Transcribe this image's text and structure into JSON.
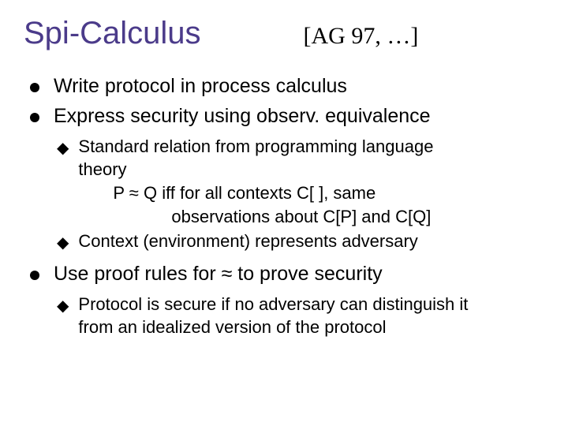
{
  "title": "Spi-Calculus",
  "citation": "[AG 97, …]",
  "bullets": [
    {
      "text": "Write protocol in process calculus"
    },
    {
      "text": "Express security using observ. equivalence"
    }
  ],
  "sub1": [
    {
      "line1": "Standard relation from programming language",
      "line2": "theory",
      "line3": "P ≈ Q iff  for all contexts C[ ], same",
      "line4": "observations about C[P] and C[Q]"
    },
    {
      "line1": "Context (environment) represents adversary"
    }
  ],
  "bullet3": {
    "text": "Use proof rules for ≈ to prove security"
  },
  "sub2": [
    {
      "line1": "Protocol is secure if no adversary can distinguish it",
      "line2": "from an idealized version of the protocol"
    }
  ],
  "colors": {
    "title": "#4b3b8a",
    "text": "#000000",
    "background": "#ffffff"
  },
  "fonts": {
    "title_family": "Verdana",
    "body_family": "Comic Sans MS",
    "title_size": 40,
    "bullet_size": 25,
    "sub_size": 22
  }
}
